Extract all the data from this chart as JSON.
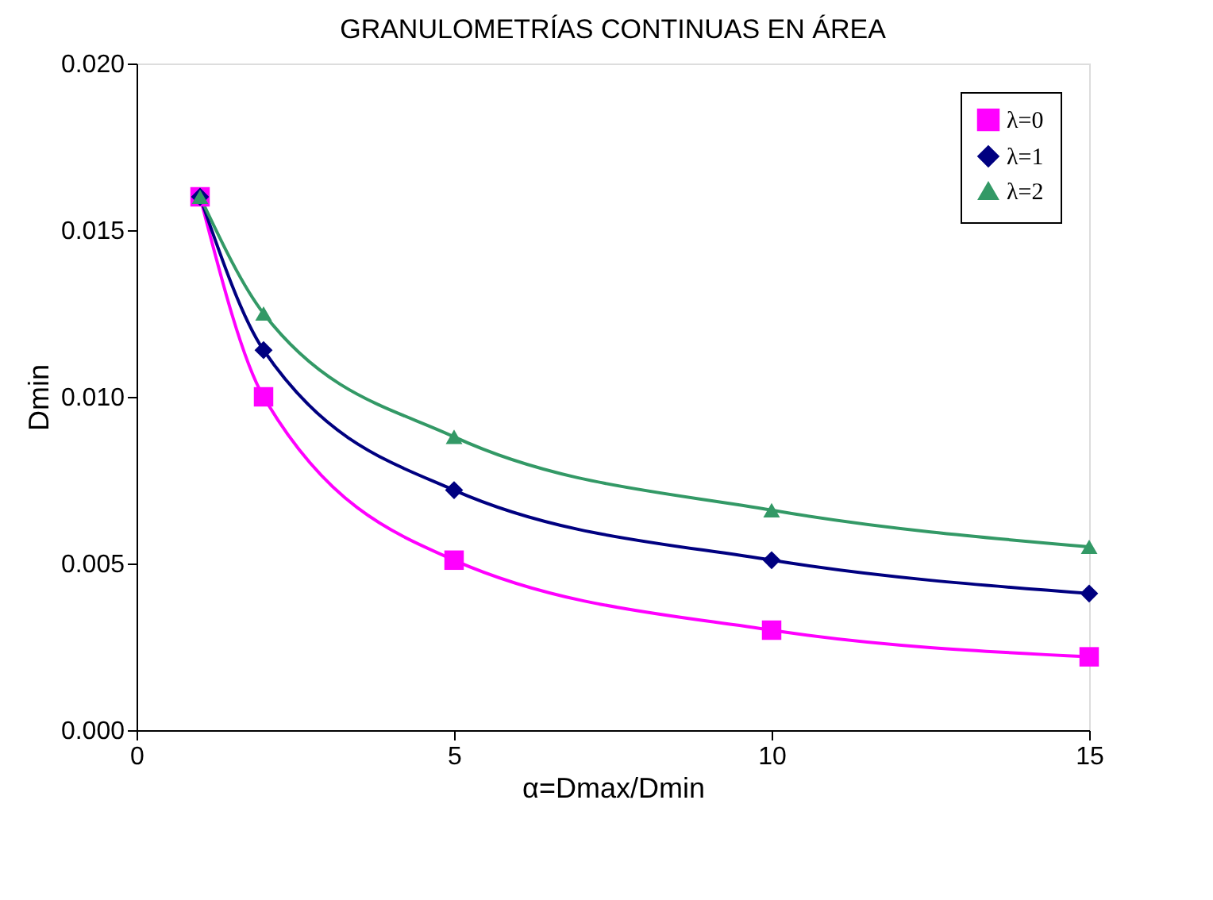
{
  "chart_data": {
    "type": "line",
    "title": "GRANULOMETRÍAS CONTINUAS EN ÁREA",
    "xlabel": "α=Dmax/Dmin",
    "ylabel": "Dmin",
    "x": [
      1,
      2,
      5,
      10,
      15
    ],
    "series": [
      {
        "name": "λ=0",
        "color": "#ff00ff",
        "marker": "square",
        "values": [
          0.016,
          0.01,
          0.0051,
          0.003,
          0.0022
        ]
      },
      {
        "name": "λ=1",
        "color": "#000080",
        "marker": "diamond",
        "values": [
          0.016,
          0.0114,
          0.0072,
          0.0051,
          0.0041
        ]
      },
      {
        "name": "λ=2",
        "color": "#339966",
        "marker": "triangle",
        "values": [
          0.016,
          0.0125,
          0.0088,
          0.0066,
          0.0055
        ]
      }
    ],
    "xlim": [
      0,
      15
    ],
    "xticks": [
      0,
      5,
      10,
      15
    ],
    "ylim": [
      0,
      0.02
    ],
    "yticks": [
      {
        "value": 0,
        "label": "0.000"
      },
      {
        "value": 0.005,
        "label": "0.005"
      },
      {
        "value": 0.01,
        "label": "0.010"
      },
      {
        "value": 0.015,
        "label": "0.015"
      },
      {
        "value": 0.02,
        "label": "0.020"
      }
    ],
    "grid": false,
    "legend": "top right",
    "line_style": "solid"
  }
}
